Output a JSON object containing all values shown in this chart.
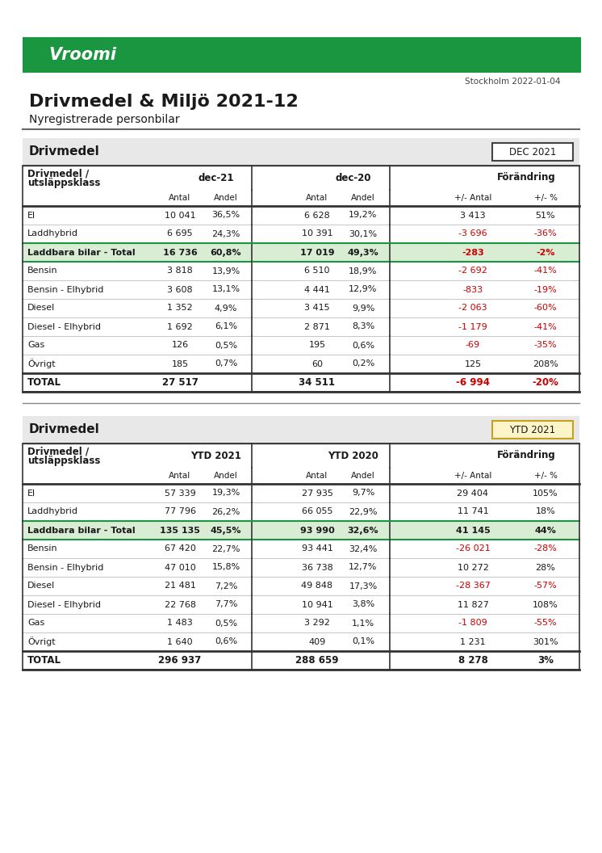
{
  "title": "Drivmedel & Miljö 2021-12",
  "subtitle": "Nyregistrerade personbilar",
  "date_location": "Stockholm 2022-01-04",
  "table1": {
    "section_label": "Drivmedel",
    "badge_text": "DEC 2021",
    "badge_bg": "#ffffff",
    "badge_border": "#444444",
    "col_groups": [
      "dec-21",
      "dec-20",
      "Förändring"
    ],
    "rows": [
      {
        "label": "El",
        "d21a": "10 041",
        "d21b": "36,5%",
        "d20a": "6 628",
        "d20b": "19,2%",
        "fa": "3 413",
        "fb": "51%",
        "fa_red": false,
        "fb_red": false
      },
      {
        "label": "Laddhybrid",
        "d21a": "6 695",
        "d21b": "24,3%",
        "d20a": "10 391",
        "d20b": "30,1%",
        "fa": "-3 696",
        "fb": "-36%",
        "fa_red": true,
        "fb_red": true
      },
      {
        "label": "Laddbara bilar - Total",
        "d21a": "16 736",
        "d21b": "60,8%",
        "d20a": "17 019",
        "d20b": "49,3%",
        "fa": "-283",
        "fb": "-2%",
        "fa_red": true,
        "fb_red": true,
        "bold": true,
        "green_bg": true
      },
      {
        "label": "Bensin",
        "d21a": "3 818",
        "d21b": "13,9%",
        "d20a": "6 510",
        "d20b": "18,9%",
        "fa": "-2 692",
        "fb": "-41%",
        "fa_red": true,
        "fb_red": true
      },
      {
        "label": "Bensin - Elhybrid",
        "d21a": "3 608",
        "d21b": "13,1%",
        "d20a": "4 441",
        "d20b": "12,9%",
        "fa": "-833",
        "fb": "-19%",
        "fa_red": true,
        "fb_red": true
      },
      {
        "label": "Diesel",
        "d21a": "1 352",
        "d21b": "4,9%",
        "d20a": "3 415",
        "d20b": "9,9%",
        "fa": "-2 063",
        "fb": "-60%",
        "fa_red": true,
        "fb_red": true
      },
      {
        "label": "Diesel - Elhybrid",
        "d21a": "1 692",
        "d21b": "6,1%",
        "d20a": "2 871",
        "d20b": "8,3%",
        "fa": "-1 179",
        "fb": "-41%",
        "fa_red": true,
        "fb_red": true
      },
      {
        "label": "Gas",
        "d21a": "126",
        "d21b": "0,5%",
        "d20a": "195",
        "d20b": "0,6%",
        "fa": "-69",
        "fb": "-35%",
        "fa_red": true,
        "fb_red": true
      },
      {
        "label": "Övrigt",
        "d21a": "185",
        "d21b": "0,7%",
        "d20a": "60",
        "d20b": "0,2%",
        "fa": "125",
        "fb": "208%",
        "fa_red": false,
        "fb_red": false
      }
    ],
    "total": {
      "label": "TOTAL",
      "d21a": "27 517",
      "d21b": "",
      "d20a": "34 511",
      "d20b": "",
      "fa": "-6 994",
      "fb": "-20%",
      "fa_red": true,
      "fb_red": true
    }
  },
  "table2": {
    "section_label": "Drivmedel",
    "badge_text": "YTD 2021",
    "badge_bg": "#fdf5c8",
    "badge_border": "#c8a020",
    "col_groups": [
      "YTD 2021",
      "YTD 2020",
      "Förändring"
    ],
    "rows": [
      {
        "label": "El",
        "d21a": "57 339",
        "d21b": "19,3%",
        "d20a": "27 935",
        "d20b": "9,7%",
        "fa": "29 404",
        "fb": "105%",
        "fa_red": false,
        "fb_red": false
      },
      {
        "label": "Laddhybrid",
        "d21a": "77 796",
        "d21b": "26,2%",
        "d20a": "66 055",
        "d20b": "22,9%",
        "fa": "11 741",
        "fb": "18%",
        "fa_red": false,
        "fb_red": false
      },
      {
        "label": "Laddbara bilar - Total",
        "d21a": "135 135",
        "d21b": "45,5%",
        "d20a": "93 990",
        "d20b": "32,6%",
        "fa": "41 145",
        "fb": "44%",
        "fa_red": false,
        "fb_red": false,
        "bold": true,
        "green_bg": true
      },
      {
        "label": "Bensin",
        "d21a": "67 420",
        "d21b": "22,7%",
        "d20a": "93 441",
        "d20b": "32,4%",
        "fa": "-26 021",
        "fb": "-28%",
        "fa_red": true,
        "fb_red": true
      },
      {
        "label": "Bensin - Elhybrid",
        "d21a": "47 010",
        "d21b": "15,8%",
        "d20a": "36 738",
        "d20b": "12,7%",
        "fa": "10 272",
        "fb": "28%",
        "fa_red": false,
        "fb_red": false
      },
      {
        "label": "Diesel",
        "d21a": "21 481",
        "d21b": "7,2%",
        "d20a": "49 848",
        "d20b": "17,3%",
        "fa": "-28 367",
        "fb": "-57%",
        "fa_red": true,
        "fb_red": true
      },
      {
        "label": "Diesel - Elhybrid",
        "d21a": "22 768",
        "d21b": "7,7%",
        "d20a": "10 941",
        "d20b": "3,8%",
        "fa": "11 827",
        "fb": "108%",
        "fa_red": false,
        "fb_red": false
      },
      {
        "label": "Gas",
        "d21a": "1 483",
        "d21b": "0,5%",
        "d20a": "3 292",
        "d20b": "1,1%",
        "fa": "-1 809",
        "fb": "-55%",
        "fa_red": true,
        "fb_red": true
      },
      {
        "label": "Övrigt",
        "d21a": "1 640",
        "d21b": "0,6%",
        "d20a": "409",
        "d20b": "0,1%",
        "fa": "1 231",
        "fb": "301%",
        "fa_red": false,
        "fb_red": false
      }
    ],
    "total": {
      "label": "TOTAL",
      "d21a": "296 937",
      "d21b": "",
      "d20a": "288 659",
      "d20b": "",
      "fa": "8 278",
      "fb": "3%",
      "fa_red": false,
      "fb_red": false
    }
  },
  "colors": {
    "green": "#1a9641",
    "red": "#cc0000",
    "black": "#1a1a1a",
    "section_bg": "#e8e8e8",
    "light_green_bg": "#d8edd4",
    "white": "#ffffff",
    "border": "#333333",
    "thin_border": "#bbbbbb"
  }
}
